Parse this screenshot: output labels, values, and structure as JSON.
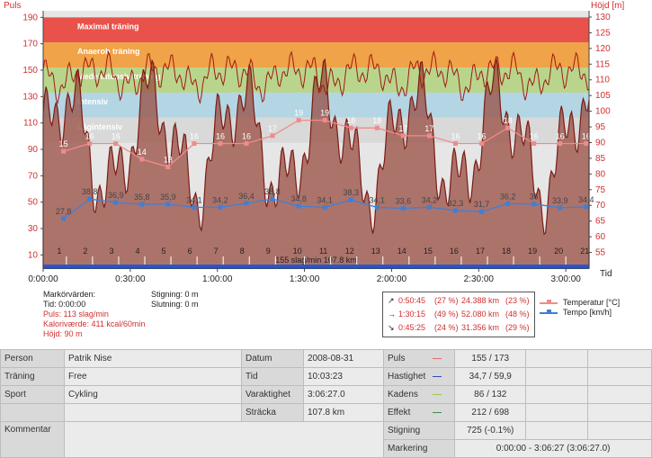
{
  "chart_data": {
    "type": "line",
    "left_axis": {
      "label": "Puls",
      "ticks": [
        10,
        30,
        50,
        70,
        90,
        110,
        130,
        150,
        170,
        190
      ],
      "ylim": [
        0,
        195
      ]
    },
    "right_axis": {
      "label": "Höjd [m]",
      "ticks": [
        55,
        60,
        65,
        70,
        75,
        80,
        85,
        90,
        95,
        100,
        105,
        110,
        115,
        120,
        125,
        130
      ],
      "ylim": [
        50,
        132
      ]
    },
    "x_axis": {
      "label": "Tid",
      "ticks": [
        "0:00:00",
        "0:30:00",
        "1:00:00",
        "1:30:00",
        "2:00:00",
        "2:30:00",
        "3:00:00"
      ],
      "tick_minutes": [
        0,
        30,
        60,
        90,
        120,
        150,
        180
      ],
      "xlim_minutes": [
        0,
        188
      ]
    },
    "zones": [
      {
        "name": "Maximal träning",
        "from": 171,
        "to": 190,
        "color": "#e8524a"
      },
      {
        "name": "Anaerob träning",
        "from": 152,
        "to": 171,
        "color": "#f0a348"
      },
      {
        "name": "Medelintensiv träning",
        "from": 133,
        "to": 152,
        "color": "#b9d58c"
      },
      {
        "name": "Intensiv",
        "from": 114,
        "to": 133,
        "color": "#b4d6e4"
      },
      {
        "name": "Lågintensiv",
        "from": 95,
        "to": 114,
        "color": "#d9d9d9"
      }
    ],
    "laps": [
      "1",
      "2",
      "3",
      "4",
      "5",
      "6",
      "7",
      "8",
      "9",
      "10",
      "11",
      "12",
      "13",
      "14",
      "15",
      "16",
      "17",
      "18",
      "19",
      "20",
      "21"
    ],
    "lap_minutes": [
      8,
      17,
      26,
      35,
      44,
      53,
      62,
      71,
      80,
      90,
      99,
      108,
      117,
      126,
      135,
      144,
      153,
      162,
      171,
      180,
      189
    ],
    "series": [
      {
        "name": "Temperatur [°C]",
        "color": "#f08b8b",
        "x": [
          7,
          16,
          25,
          34,
          43,
          52,
          61,
          70,
          79,
          88,
          97,
          106,
          115,
          124,
          133,
          142,
          151,
          160,
          169,
          178,
          187
        ],
        "y": [
          15,
          16,
          16,
          14,
          13,
          16,
          16,
          16,
          17,
          19,
          19,
          18,
          18,
          17,
          17,
          16,
          16,
          18,
          16,
          16,
          16
        ]
      },
      {
        "name": "Tempo [km/h]",
        "color": "#3f7fd6",
        "x": [
          7,
          16,
          25,
          34,
          43,
          52,
          61,
          70,
          79,
          88,
          97,
          106,
          115,
          124,
          133,
          142,
          151,
          160,
          169,
          178,
          187
        ],
        "y": [
          27.8,
          38.8,
          36.9,
          35.8,
          35.9,
          34.1,
          34.2,
          36.4,
          38.8,
          34.8,
          34.1,
          38.3,
          34.1,
          33.6,
          34.2,
          32.3,
          31.7,
          36.2,
          36.0,
          33.9,
          34.4
        ]
      }
    ],
    "bottom_label": "155 slag/min 107.8 km"
  },
  "marker": {
    "title": "Markörvärden:",
    "tid": "Tid: 0:00:00",
    "puls": "Puls: 113 slag/min",
    "kalori": "Kaloriværde: 411 kcal/60min",
    "hojd": "Höjd: 90 m",
    "stigning": "Stigning: 0 m",
    "slutning": "Slutning: 0 m"
  },
  "summary": [
    {
      "icon": "↗",
      "time": "0:50:45",
      "pct": "(27 %)",
      "km": "24.388 km",
      "kpct": "(23 %)"
    },
    {
      "icon": "→",
      "time": "1:30:15",
      "pct": "(49 %)",
      "km": "52.080 km",
      "kpct": "(48 %)"
    },
    {
      "icon": "↘",
      "time": "0:45:25",
      "pct": "(24 %)",
      "km": "31.356 km",
      "kpct": "(29 %)"
    }
  ],
  "legend": {
    "temp": "Temperatur [°C]",
    "tempo": "Tempo [km/h]"
  },
  "stats": {
    "person_l": "Person",
    "person_v": "Patrik Nise",
    "traning_l": "Träning",
    "traning_v": "Free",
    "sport_l": "Sport",
    "sport_v": "Cykling",
    "kommentar_l": "Kommentar",
    "datum_l": "Datum",
    "datum_v": "2008-08-31",
    "tid_l": "Tid",
    "tid_v": "10:03:23",
    "varaktighet_l": "Varaktighet",
    "varaktighet_v": "3:06:27.0",
    "stracka_l": "Sträcka",
    "stracka_v": "107.8 km",
    "puls_l": "Puls",
    "puls_v": "155 / 173",
    "hastighet_l": "Hastighet",
    "hastighet_v": "34,7 / 59,9",
    "kadens_l": "Kadens",
    "kadens_v": "86 / 132",
    "effekt_l": "Effekt",
    "effekt_v": "212 / 698",
    "stigning_l": "Stigning",
    "stigning_v": "725 (-0.1%)",
    "markering_l": "Markering",
    "markering_v": "0:00:00 - 3:06:27 (3:06:27.0)",
    "swatch_colors": {
      "puls": "#e26b6b",
      "hastighet": "#2a4fb0",
      "kadens": "#9bc94d",
      "effekt": "#3c8c4a"
    }
  }
}
